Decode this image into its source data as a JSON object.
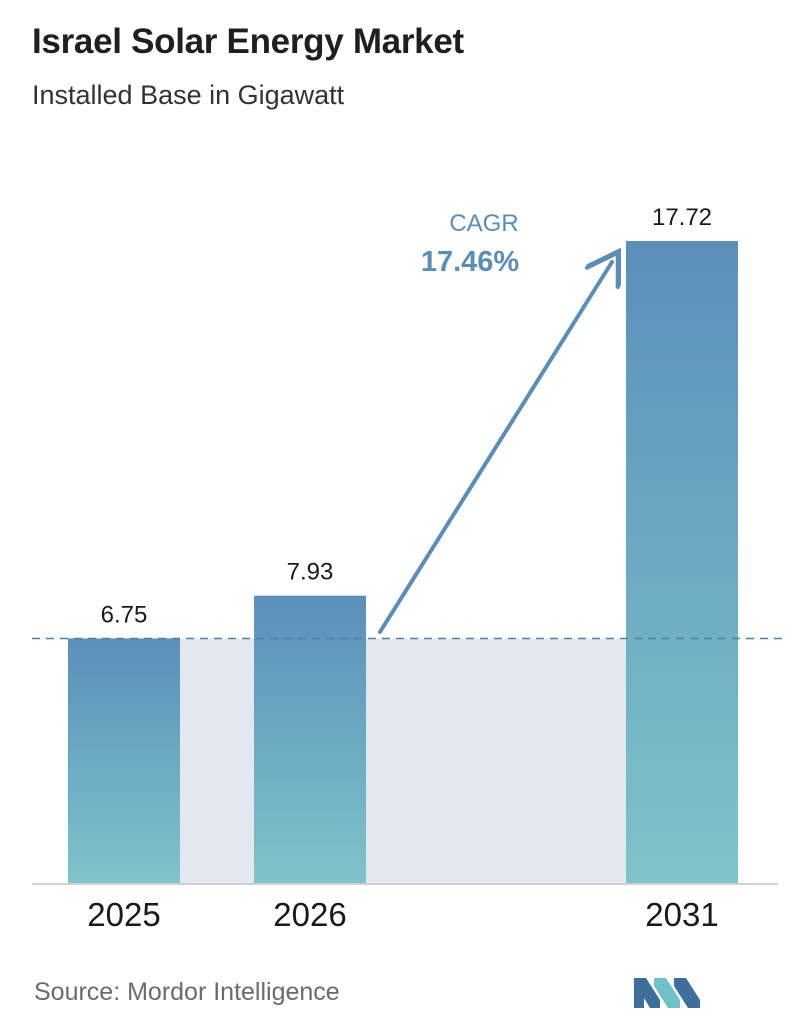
{
  "header": {
    "title": "Israel Solar Energy Market",
    "subtitle": "Installed Base in Gigawatt"
  },
  "chart_data": {
    "type": "bar",
    "categories": [
      "2025",
      "2026",
      "2031"
    ],
    "values": [
      6.75,
      7.93,
      17.72
    ],
    "value_labels": [
      "6.75",
      "7.93",
      "17.72"
    ],
    "ylim": [
      0,
      17.72
    ],
    "grid": false,
    "reference_line": 6.75,
    "annotation": {
      "label": "CAGR",
      "value": "17.46%"
    }
  },
  "footer": {
    "source": "Source:  Mordor Intelligence",
    "logo_icon": "mordor-intelligence-logo-icon"
  },
  "colors": {
    "bar_top": "#5b8fba",
    "bar_bottom": "#7ec4c9",
    "band": "#e3e8f0",
    "arrow": "#5d8db5",
    "dashed_line": "#4f7fa6",
    "axis": "#cfcfcf",
    "logo_dark": "#3f6e9a",
    "logo_light": "#6fc1c5"
  }
}
